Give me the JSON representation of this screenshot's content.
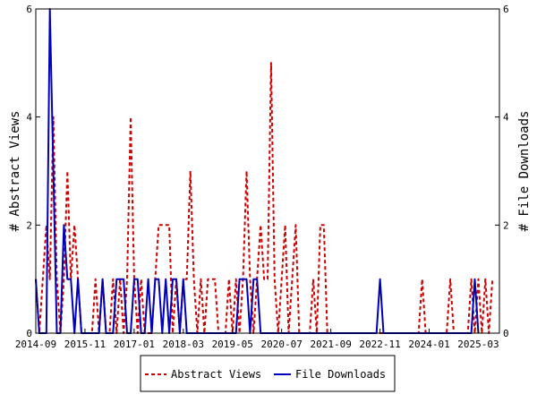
{
  "chart_data": {
    "type": "line",
    "ylabel_left": "# Abstract Views",
    "ylabel_right": "# File Downloads",
    "x_ticks": [
      "2014-09",
      "2015-11",
      "2017-01",
      "2018-03",
      "2019-05",
      "2020-07",
      "2021-09",
      "2022-11",
      "2024-01",
      "2025-03"
    ],
    "y_ticks": [
      "0",
      "2",
      "4",
      "6"
    ],
    "xlim": [
      "2014-09",
      "2025-09"
    ],
    "ylim": [
      0,
      6
    ],
    "grid": false,
    "legend_placement": "bottom",
    "series": [
      {
        "name": "Abstract Views",
        "color": "#cc0000",
        "style": "dashed",
        "points": [
          [
            "2014-09",
            1
          ],
          [
            "2014-10",
            0
          ],
          [
            "2014-11",
            1
          ],
          [
            "2014-12",
            2
          ],
          [
            "2015-01",
            1
          ],
          [
            "2015-02",
            4
          ],
          [
            "2015-03",
            1
          ],
          [
            "2015-04",
            0
          ],
          [
            "2015-05",
            1
          ],
          [
            "2015-06",
            3
          ],
          [
            "2015-07",
            1
          ],
          [
            "2015-08",
            2
          ],
          [
            "2015-09",
            1
          ],
          [
            "2015-10",
            0
          ],
          [
            "2016-01",
            0
          ],
          [
            "2016-02",
            1
          ],
          [
            "2016-03",
            0
          ],
          [
            "2016-04",
            1
          ],
          [
            "2016-05",
            0
          ],
          [
            "2016-06",
            0
          ],
          [
            "2016-07",
            1
          ],
          [
            "2016-08",
            0
          ],
          [
            "2016-09",
            1
          ],
          [
            "2016-10",
            0
          ],
          [
            "2016-11",
            1
          ],
          [
            "2016-12",
            4
          ],
          [
            "2017-01",
            1
          ],
          [
            "2017-02",
            0
          ],
          [
            "2017-03",
            1
          ],
          [
            "2017-04",
            0
          ],
          [
            "2017-06",
            0
          ],
          [
            "2017-07",
            1
          ],
          [
            "2017-08",
            2
          ],
          [
            "2017-09",
            2
          ],
          [
            "2017-10",
            2
          ],
          [
            "2017-11",
            2
          ],
          [
            "2017-12",
            0
          ],
          [
            "2018-01",
            1
          ],
          [
            "2018-02",
            0
          ],
          [
            "2018-03",
            1
          ],
          [
            "2018-04",
            1
          ],
          [
            "2018-05",
            3
          ],
          [
            "2018-06",
            1
          ],
          [
            "2018-07",
            0
          ],
          [
            "2018-08",
            1
          ],
          [
            "2018-09",
            0
          ],
          [
            "2018-10",
            1
          ],
          [
            "2018-11",
            1
          ],
          [
            "2018-12",
            1
          ],
          [
            "2019-01",
            0
          ],
          [
            "2019-03",
            0
          ],
          [
            "2019-04",
            1
          ],
          [
            "2019-05",
            0
          ],
          [
            "2019-06",
            1
          ],
          [
            "2019-07",
            0
          ],
          [
            "2019-08",
            1
          ],
          [
            "2019-09",
            3
          ],
          [
            "2019-10",
            1
          ],
          [
            "2019-11",
            0
          ],
          [
            "2019-12",
            1
          ],
          [
            "2020-01",
            2
          ],
          [
            "2020-02",
            1
          ],
          [
            "2020-03",
            1
          ],
          [
            "2020-04",
            5
          ],
          [
            "2020-05",
            1
          ],
          [
            "2020-06",
            0
          ],
          [
            "2020-07",
            1
          ],
          [
            "2020-08",
            2
          ],
          [
            "2020-09",
            0
          ],
          [
            "2020-10",
            1
          ],
          [
            "2020-11",
            2
          ],
          [
            "2020-12",
            0
          ],
          [
            "2021-03",
            0
          ],
          [
            "2021-04",
            1
          ],
          [
            "2021-05",
            0
          ],
          [
            "2021-06",
            2
          ],
          [
            "2021-07",
            2
          ],
          [
            "2021-08",
            0
          ],
          [
            "2023-10",
            0
          ],
          [
            "2023-11",
            1
          ],
          [
            "2023-12",
            0
          ],
          [
            "2024-06",
            0
          ],
          [
            "2024-07",
            1
          ],
          [
            "2024-08",
            0
          ],
          [
            "2024-12",
            0
          ],
          [
            "2025-01",
            1
          ],
          [
            "2025-02",
            0
          ],
          [
            "2025-03",
            1
          ],
          [
            "2025-04",
            0
          ],
          [
            "2025-05",
            1
          ],
          [
            "2025-06",
            0
          ],
          [
            "2025-07",
            1
          ]
        ]
      },
      {
        "name": "File Downloads",
        "color": "#0000bb",
        "style": "solid",
        "points": [
          [
            "2014-09",
            1
          ],
          [
            "2014-10",
            0
          ],
          [
            "2014-11",
            0
          ],
          [
            "2014-12",
            0
          ],
          [
            "2015-01",
            6
          ],
          [
            "2015-02",
            3
          ],
          [
            "2015-03",
            0
          ],
          [
            "2015-04",
            0
          ],
          [
            "2015-05",
            2
          ],
          [
            "2015-06",
            1
          ],
          [
            "2015-07",
            1
          ],
          [
            "2015-08",
            0
          ],
          [
            "2015-09",
            1
          ],
          [
            "2015-10",
            0
          ],
          [
            "2016-03",
            0
          ],
          [
            "2016-04",
            1
          ],
          [
            "2016-05",
            0
          ],
          [
            "2016-06",
            0
          ],
          [
            "2016-07",
            0
          ],
          [
            "2016-08",
            1
          ],
          [
            "2016-09",
            1
          ],
          [
            "2016-10",
            1
          ],
          [
            "2016-11",
            0
          ],
          [
            "2016-12",
            0
          ],
          [
            "2017-01",
            1
          ],
          [
            "2017-02",
            1
          ],
          [
            "2017-03",
            0
          ],
          [
            "2017-04",
            0
          ],
          [
            "2017-05",
            1
          ],
          [
            "2017-06",
            0
          ],
          [
            "2017-07",
            1
          ],
          [
            "2017-08",
            1
          ],
          [
            "2017-09",
            0
          ],
          [
            "2017-10",
            1
          ],
          [
            "2017-11",
            0
          ],
          [
            "2017-12",
            1
          ],
          [
            "2018-01",
            1
          ],
          [
            "2018-02",
            0
          ],
          [
            "2018-03",
            1
          ],
          [
            "2018-04",
            0
          ],
          [
            "2019-06",
            0
          ],
          [
            "2019-07",
            1
          ],
          [
            "2019-08",
            1
          ],
          [
            "2019-09",
            1
          ],
          [
            "2019-10",
            0
          ],
          [
            "2019-11",
            1
          ],
          [
            "2019-12",
            1
          ],
          [
            "2020-01",
            0
          ],
          [
            "2022-10",
            0
          ],
          [
            "2022-11",
            1
          ],
          [
            "2022-12",
            0
          ],
          [
            "2025-01",
            0
          ],
          [
            "2025-02",
            1
          ],
          [
            "2025-03",
            0
          ]
        ]
      }
    ]
  }
}
